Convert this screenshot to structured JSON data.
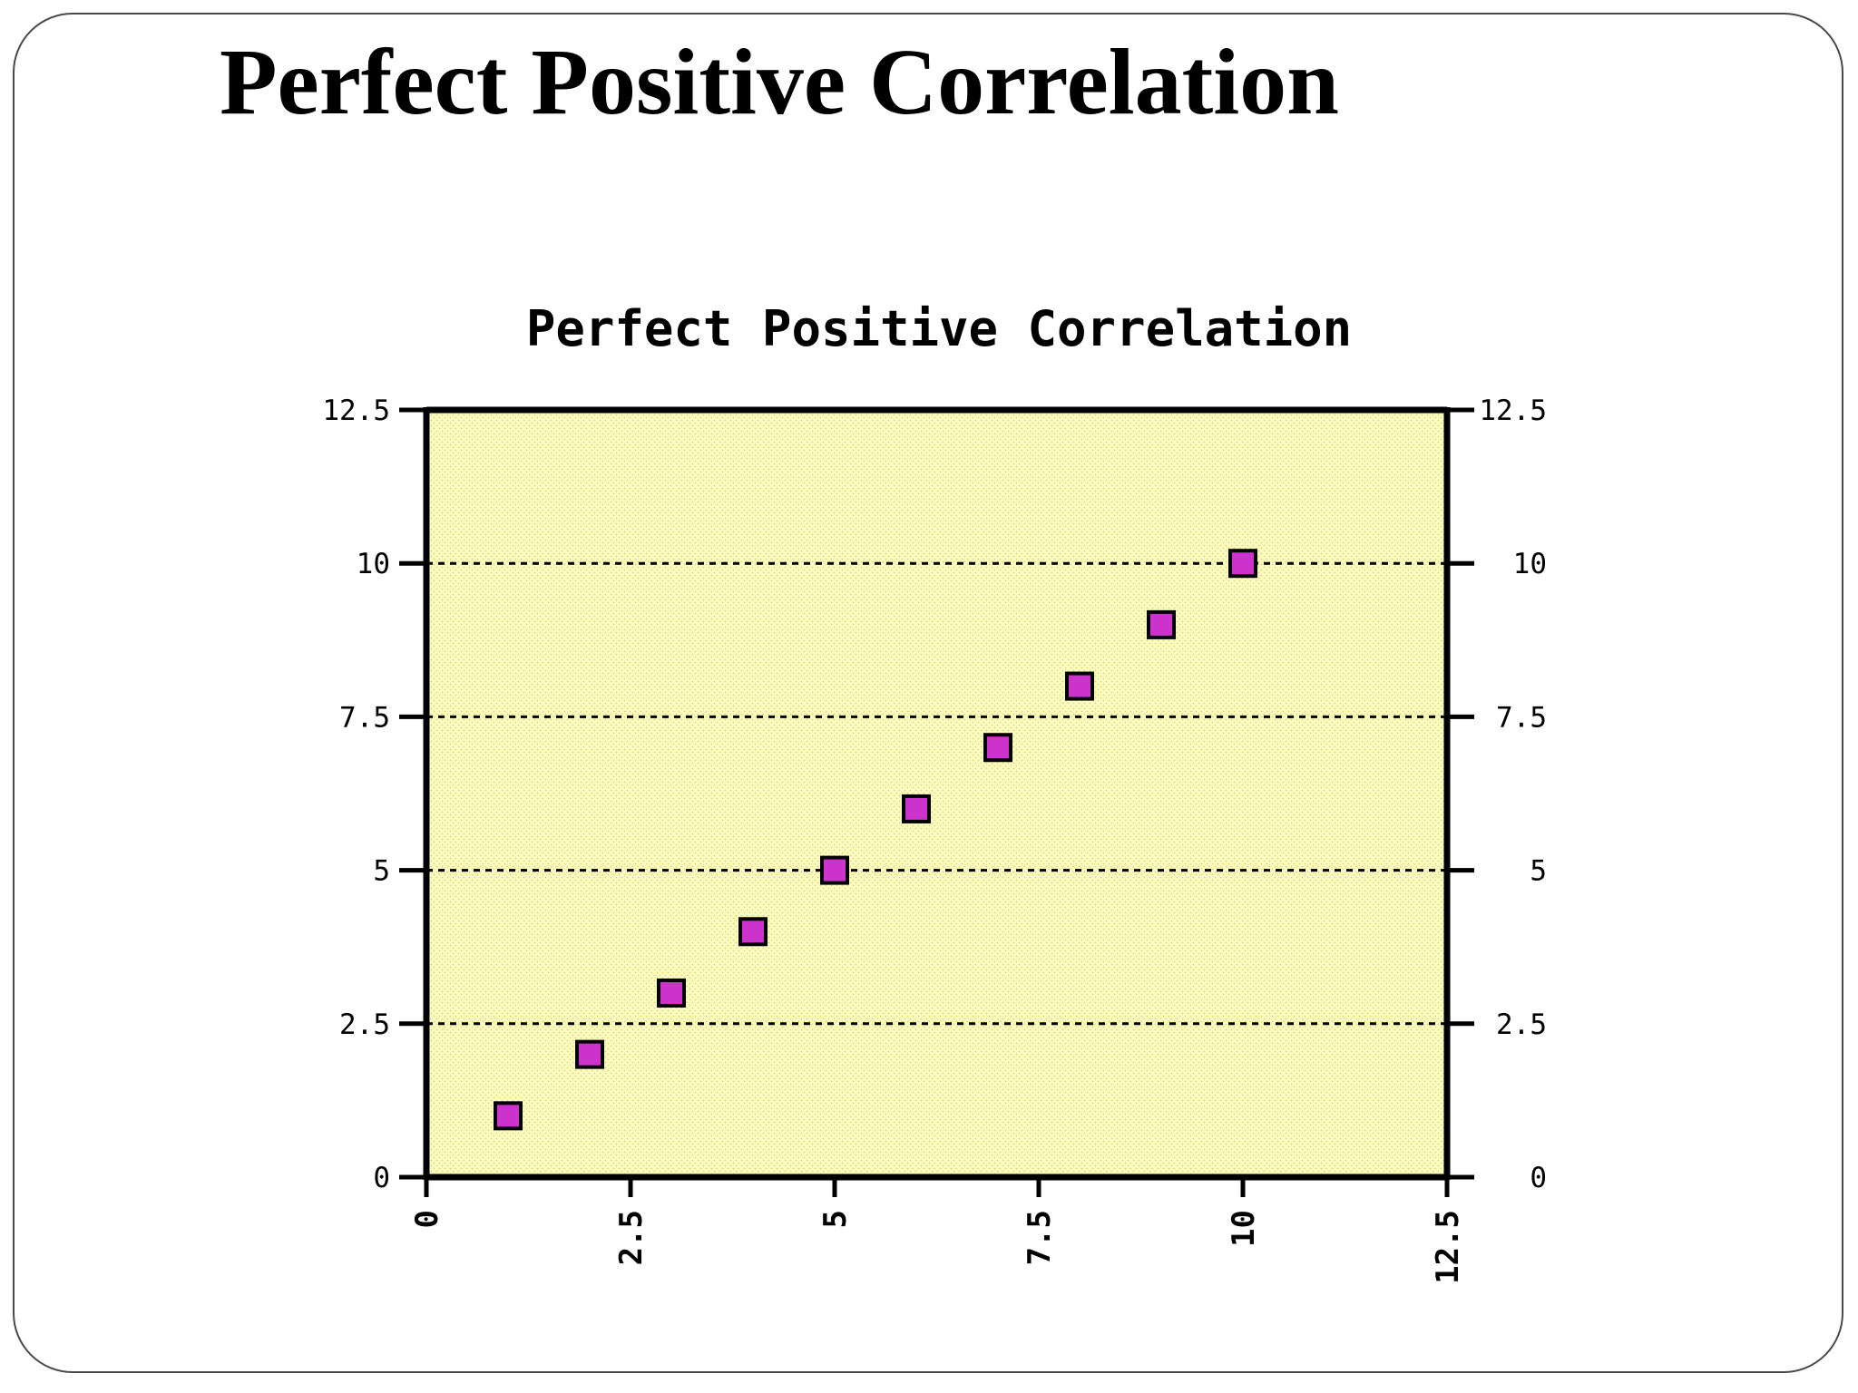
{
  "slide": {
    "title": "Perfect Positive Correlation"
  },
  "chart_data": {
    "type": "scatter",
    "title": "Perfect Positive Correlation",
    "xlabel": "",
    "ylabel": "",
    "xlim": [
      0,
      12.5
    ],
    "ylim": [
      0,
      12.5
    ],
    "x_ticks": [
      0,
      2.5,
      5,
      7.5,
      10,
      12.5
    ],
    "y_ticks": [
      0,
      2.5,
      5,
      7.5,
      10,
      12.5
    ],
    "x_tick_labels": [
      "0",
      "2.5",
      "5",
      "7.5",
      "10",
      "12.5"
    ],
    "y_tick_labels": [
      "0",
      "2.5",
      "5",
      "7.5",
      "10",
      "12.5"
    ],
    "y_axis_right_mirrored": true,
    "grid": "horizontal dashed",
    "legend": "none",
    "series": [
      {
        "x": [
          1,
          2,
          3,
          4,
          5,
          6,
          7,
          8,
          9,
          10
        ],
        "y": [
          1,
          2,
          3,
          4,
          5,
          6,
          7,
          8,
          9,
          10
        ]
      }
    ],
    "colors": {
      "plot_background": "#fcfcc2",
      "marker_fill": "#cc33cc",
      "marker_stroke": "#000000",
      "axis": "#000000"
    },
    "marker": "square"
  }
}
